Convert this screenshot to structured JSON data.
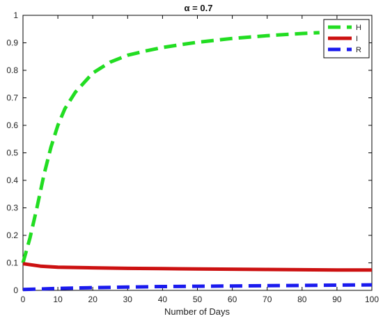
{
  "chart_data": {
    "type": "line",
    "title": "α = 0.7",
    "xlabel": "Number of Days",
    "ylabel": "",
    "xlim": [
      0,
      100
    ],
    "ylim": [
      0,
      1
    ],
    "xticks": [
      0,
      10,
      20,
      30,
      40,
      50,
      60,
      70,
      80,
      90,
      100
    ],
    "yticks": [
      0,
      0.1,
      0.2,
      0.3,
      0.4,
      0.5,
      0.6,
      0.7,
      0.8,
      0.9,
      1
    ],
    "grid": false,
    "legend_position": "top-right",
    "series": [
      {
        "name": "H",
        "color": "#22dd22",
        "style": "dashed",
        "x": [
          0,
          2,
          4,
          6,
          8,
          10,
          12,
          15,
          20,
          25,
          30,
          35,
          40,
          45,
          50,
          55,
          60,
          65,
          70,
          75,
          80,
          85
        ],
        "y": [
          0.1,
          0.19,
          0.3,
          0.42,
          0.52,
          0.6,
          0.66,
          0.72,
          0.79,
          0.83,
          0.855,
          0.87,
          0.883,
          0.893,
          0.902,
          0.909,
          0.916,
          0.921,
          0.926,
          0.93,
          0.934,
          0.937
        ]
      },
      {
        "name": "I",
        "color": "#cc1111",
        "style": "solid",
        "x": [
          0,
          5,
          10,
          20,
          30,
          40,
          50,
          60,
          70,
          80,
          90,
          100
        ],
        "y": [
          0.097,
          0.088,
          0.084,
          0.082,
          0.08,
          0.079,
          0.078,
          0.077,
          0.076,
          0.075,
          0.074,
          0.074
        ]
      },
      {
        "name": "R",
        "color": "#1a1aee",
        "style": "dashed",
        "x": [
          0,
          10,
          20,
          30,
          40,
          50,
          60,
          70,
          80,
          90,
          100
        ],
        "y": [
          0.003,
          0.007,
          0.01,
          0.012,
          0.014,
          0.015,
          0.016,
          0.017,
          0.018,
          0.019,
          0.02
        ]
      }
    ]
  }
}
